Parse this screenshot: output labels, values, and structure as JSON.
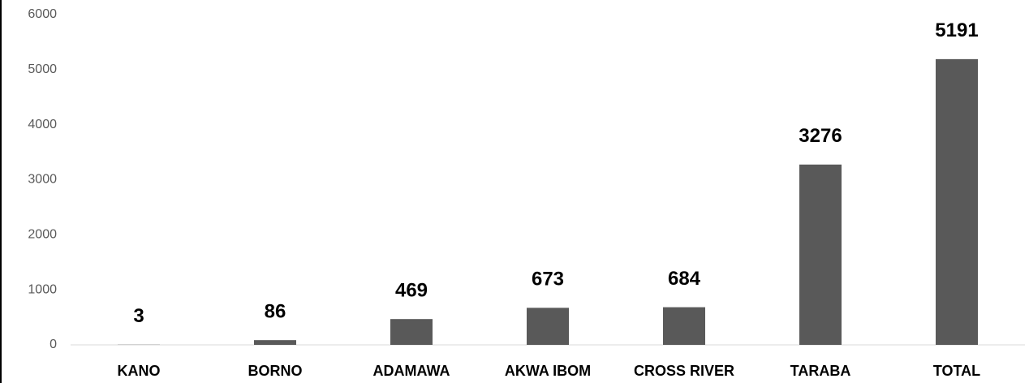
{
  "chart_data": {
    "type": "bar",
    "categories": [
      "KANO",
      "BORNO",
      "ADAMAWA",
      "AKWA IBOM",
      "CROSS RIVER",
      "TARABA",
      "TOTAL"
    ],
    "values": [
      3,
      86,
      469,
      673,
      684,
      3276,
      5191
    ],
    "color": "#595959",
    "ylim": [
      0,
      6000
    ],
    "yticks": [
      0,
      1000,
      2000,
      3000,
      4000,
      5000,
      6000
    ],
    "grid": false
  }
}
